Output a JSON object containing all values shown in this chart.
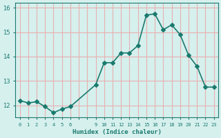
{
  "xlabel": "Humidex (Indice chaleur)",
  "x": [
    0,
    1,
    2,
    3,
    4,
    5,
    6,
    9,
    10,
    11,
    12,
    13,
    14,
    15,
    16,
    17,
    18,
    19,
    20,
    21,
    22,
    23
  ],
  "y": [
    12.2,
    12.1,
    12.15,
    11.95,
    11.7,
    11.85,
    11.95,
    12.85,
    13.75,
    13.75,
    14.15,
    14.15,
    14.45,
    15.7,
    15.75,
    15.1,
    15.3,
    14.9,
    14.05,
    13.6,
    12.75,
    12.75
  ],
  "line_color": "#1a7a6e",
  "marker": "D",
  "marker_size": 3,
  "bg_color": "#d6f0ee",
  "grid_color": "#e8b0b0",
  "axis_color": "#1a7a6e",
  "tick_label_color": "#1a7a6e",
  "xlabel_color": "#1a7a6e",
  "ylim": [
    11.5,
    16.2
  ],
  "yticks": [
    12,
    13,
    14,
    15,
    16
  ],
  "font_family": "monospace"
}
